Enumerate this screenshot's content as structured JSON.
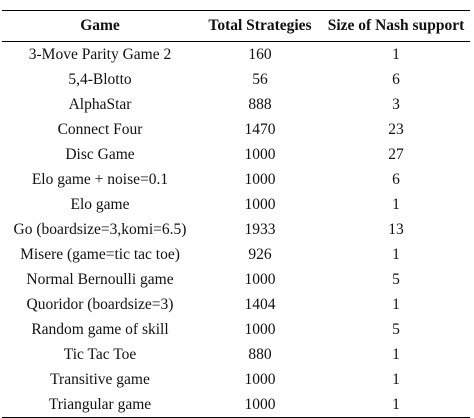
{
  "table": {
    "headers": [
      "Game",
      "Total Strategies",
      "Size of Nash support"
    ],
    "rows": [
      {
        "game": "3-Move Parity Game 2",
        "total": "160",
        "nash": "1"
      },
      {
        "game": "5,4-Blotto",
        "total": "56",
        "nash": "6"
      },
      {
        "game": "AlphaStar",
        "total": "888",
        "nash": "3"
      },
      {
        "game": "Connect Four",
        "total": "1470",
        "nash": "23"
      },
      {
        "game": "Disc Game",
        "total": "1000",
        "nash": "27"
      },
      {
        "game": "Elo game + noise=0.1",
        "total": "1000",
        "nash": "6"
      },
      {
        "game": "Elo game",
        "total": "1000",
        "nash": "1"
      },
      {
        "game": "Go (boardsize=3,komi=6.5)",
        "total": "1933",
        "nash": "13"
      },
      {
        "game": "Misere (game=tic tac toe)",
        "total": "926",
        "nash": "1"
      },
      {
        "game": "Normal Bernoulli game",
        "total": "1000",
        "nash": "5"
      },
      {
        "game": "Quoridor (boardsize=3)",
        "total": "1404",
        "nash": "1"
      },
      {
        "game": "Random game of skill",
        "total": "1000",
        "nash": "5"
      },
      {
        "game": "Tic Tac Toe",
        "total": "880",
        "nash": "1"
      },
      {
        "game": "Transitive game",
        "total": "1000",
        "nash": "1"
      },
      {
        "game": "Triangular game",
        "total": "1000",
        "nash": "1"
      }
    ]
  }
}
